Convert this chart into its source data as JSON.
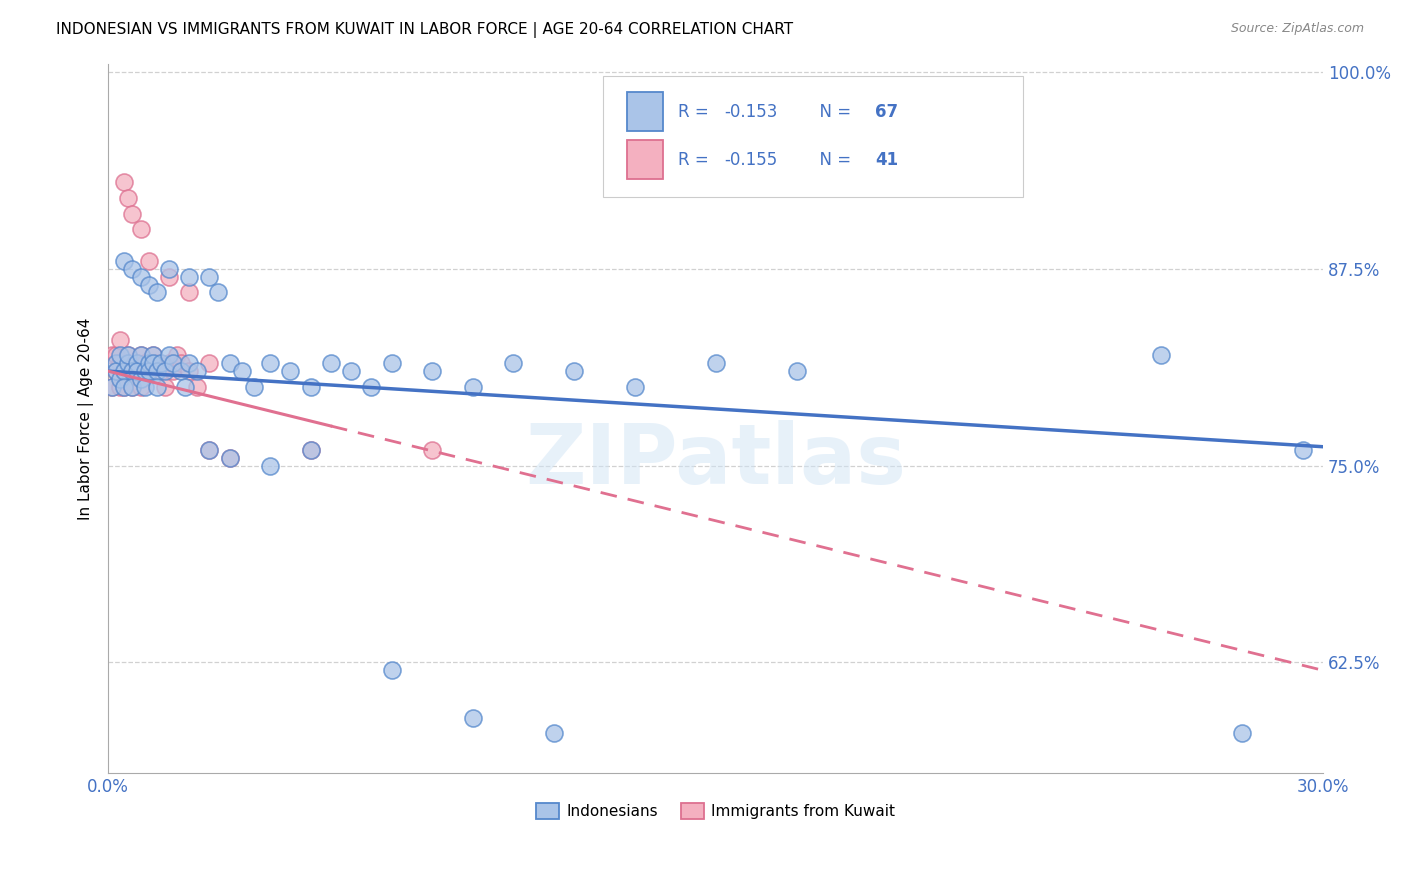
{
  "title": "INDONESIAN VS IMMIGRANTS FROM KUWAIT IN LABOR FORCE | AGE 20-64 CORRELATION CHART",
  "source": "Source: ZipAtlas.com",
  "ylabel": "In Labor Force | Age 20-64",
  "xlim": [
    0.0,
    0.3
  ],
  "ylim": [
    0.555,
    1.005
  ],
  "xticks": [
    0.0,
    0.05,
    0.1,
    0.15,
    0.2,
    0.25,
    0.3
  ],
  "xticklabels": [
    "0.0%",
    "",
    "",
    "",
    "",
    "",
    "30.0%"
  ],
  "ytick_vals": [
    0.625,
    0.75,
    0.875,
    1.0
  ],
  "yticklabels": [
    "62.5%",
    "75.0%",
    "87.5%",
    "100.0%"
  ],
  "grid_color": "#cccccc",
  "background_color": "#ffffff",
  "indonesian_face": "#aac4e8",
  "indonesian_edge": "#5588cc",
  "kuwait_face": "#f4b0c0",
  "kuwait_edge": "#dd7090",
  "indonesian_line": "#4472c4",
  "kuwait_line": "#e07090",
  "tick_color": "#4472c4",
  "legend_text_color": "#4472c4",
  "label1": "Indonesians",
  "label2": "Immigrants from Kuwait",
  "watermark": "ZIPatlas",
  "indo_x": [
    0.001,
    0.002,
    0.002,
    0.003,
    0.003,
    0.004,
    0.004,
    0.005,
    0.005,
    0.006,
    0.006,
    0.007,
    0.007,
    0.008,
    0.008,
    0.009,
    0.009,
    0.01,
    0.01,
    0.011,
    0.011,
    0.012,
    0.012,
    0.013,
    0.014,
    0.015,
    0.016,
    0.018,
    0.019,
    0.02,
    0.022,
    0.025,
    0.027,
    0.03,
    0.033,
    0.036,
    0.04,
    0.045,
    0.05,
    0.055,
    0.06,
    0.065,
    0.07,
    0.08,
    0.09,
    0.1,
    0.115,
    0.13,
    0.15,
    0.17,
    0.004,
    0.006,
    0.008,
    0.01,
    0.012,
    0.015,
    0.02,
    0.025,
    0.03,
    0.04,
    0.05,
    0.07,
    0.09,
    0.11,
    0.26,
    0.28,
    0.295
  ],
  "indo_y": [
    0.8,
    0.815,
    0.81,
    0.805,
    0.82,
    0.81,
    0.8,
    0.815,
    0.82,
    0.81,
    0.8,
    0.815,
    0.81,
    0.805,
    0.82,
    0.81,
    0.8,
    0.815,
    0.81,
    0.82,
    0.815,
    0.81,
    0.8,
    0.815,
    0.81,
    0.82,
    0.815,
    0.81,
    0.8,
    0.815,
    0.81,
    0.87,
    0.86,
    0.815,
    0.81,
    0.8,
    0.815,
    0.81,
    0.8,
    0.815,
    0.81,
    0.8,
    0.815,
    0.81,
    0.8,
    0.815,
    0.81,
    0.8,
    0.815,
    0.81,
    0.88,
    0.875,
    0.87,
    0.865,
    0.86,
    0.875,
    0.87,
    0.76,
    0.755,
    0.75,
    0.76,
    0.62,
    0.59,
    0.58,
    0.82,
    0.58,
    0.76
  ],
  "kuw_x": [
    0.001,
    0.001,
    0.002,
    0.002,
    0.003,
    0.003,
    0.003,
    0.004,
    0.004,
    0.005,
    0.005,
    0.006,
    0.006,
    0.007,
    0.007,
    0.008,
    0.008,
    0.009,
    0.01,
    0.011,
    0.012,
    0.013,
    0.014,
    0.015,
    0.016,
    0.017,
    0.018,
    0.02,
    0.022,
    0.025,
    0.004,
    0.005,
    0.006,
    0.008,
    0.01,
    0.015,
    0.02,
    0.025,
    0.03,
    0.05,
    0.08
  ],
  "kuw_y": [
    0.8,
    0.82,
    0.81,
    0.82,
    0.8,
    0.815,
    0.83,
    0.81,
    0.8,
    0.815,
    0.82,
    0.81,
    0.8,
    0.815,
    0.81,
    0.82,
    0.8,
    0.815,
    0.81,
    0.82,
    0.815,
    0.81,
    0.8,
    0.815,
    0.81,
    0.82,
    0.815,
    0.81,
    0.8,
    0.815,
    0.93,
    0.92,
    0.91,
    0.9,
    0.88,
    0.87,
    0.86,
    0.76,
    0.755,
    0.76,
    0.76
  ],
  "indo_trend_x0": 0.0,
  "indo_trend_y0": 0.81,
  "indo_trend_x1": 0.3,
  "indo_trend_y1": 0.762,
  "kuw_trend_x0": 0.0,
  "kuw_trend_y0": 0.81,
  "kuw_trend_x1": 0.3,
  "kuw_trend_y1": 0.62
}
